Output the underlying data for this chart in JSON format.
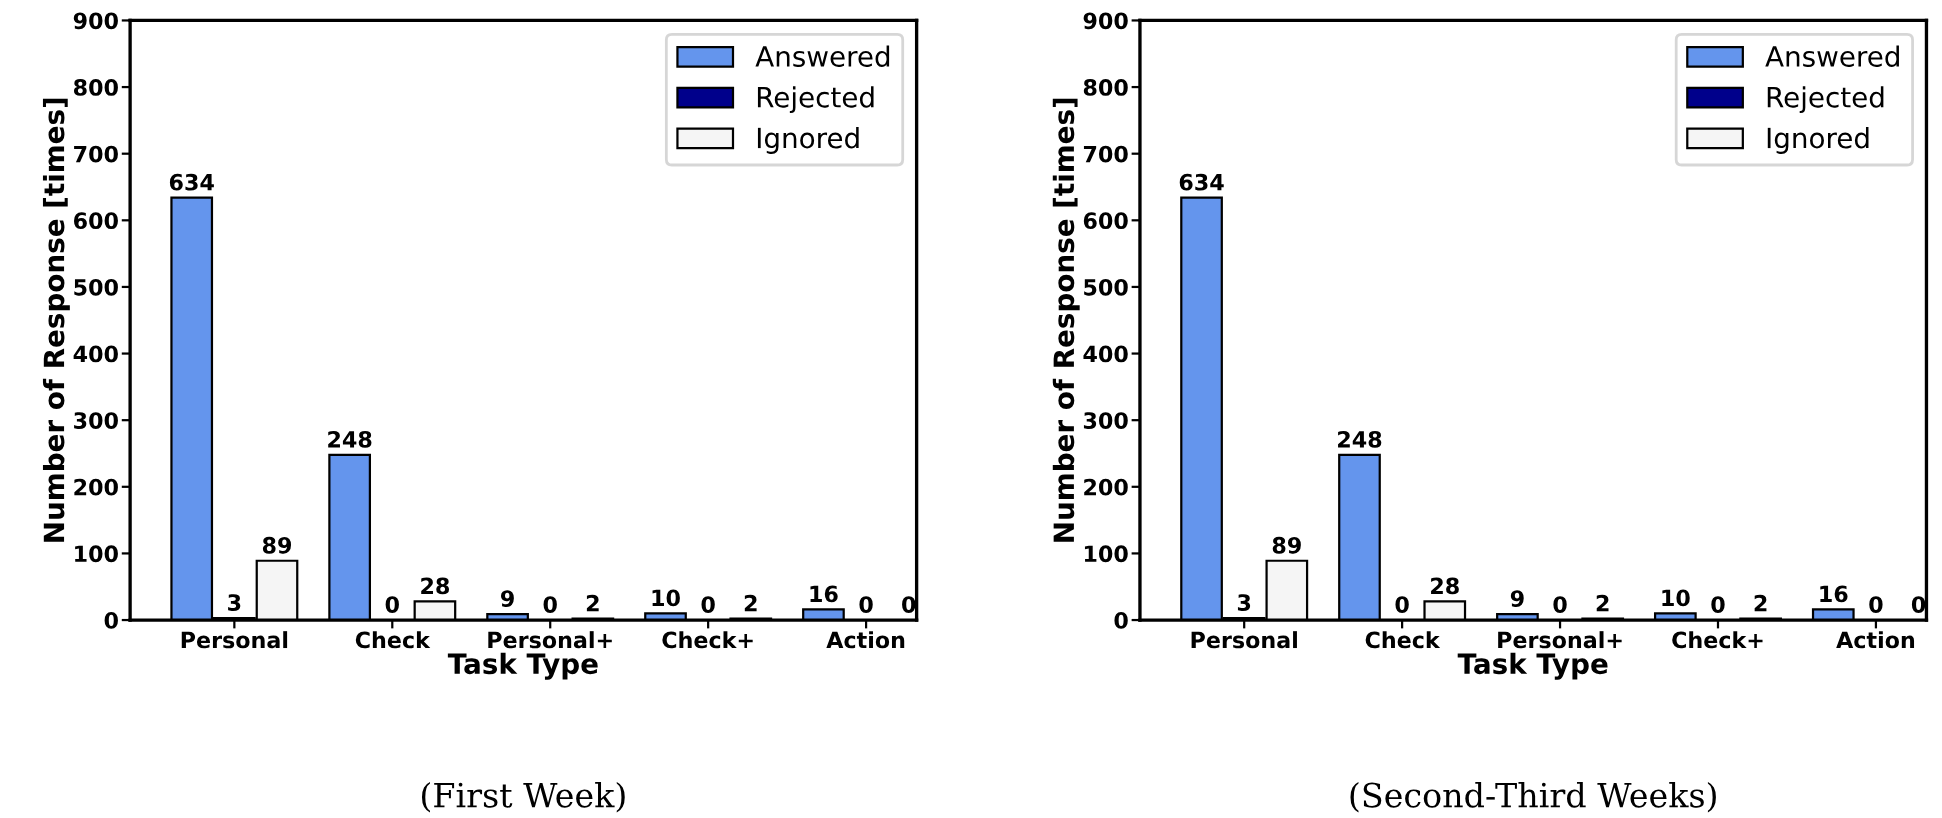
{
  "chart_data": [
    {
      "type": "bar",
      "xlabel": "Task Type",
      "ylabel": "Number of Response [times]",
      "categories": [
        "Personal",
        "Check",
        "Personal+",
        "Check+",
        "Action"
      ],
      "series": [
        {
          "name": "Answered",
          "color": "#6495ed",
          "values": [
            634,
            248,
            9,
            10,
            16
          ]
        },
        {
          "name": "Rejected",
          "color": "#00008b",
          "values": [
            3,
            0,
            0,
            0,
            0
          ]
        },
        {
          "name": "Ignored",
          "color": "#f5f5f5",
          "values": [
            89,
            28,
            2,
            2,
            0
          ]
        }
      ],
      "ylim": [
        0,
        900
      ],
      "yticks": [
        0,
        100,
        200,
        300,
        400,
        500,
        600,
        700,
        800,
        900
      ],
      "data_labels": true,
      "legend": "top right",
      "grid": false,
      "annotations": [
        "(First Week)"
      ]
    },
    {
      "type": "bar",
      "xlabel": "Task Type",
      "ylabel": "Number of Response [times]",
      "categories": [
        "Personal",
        "Check",
        "Personal+",
        "Check+",
        "Action"
      ],
      "series": [
        {
          "name": "Answered",
          "color": "#6495ed",
          "values": [
            634,
            248,
            9,
            10,
            16
          ]
        },
        {
          "name": "Rejected",
          "color": "#00008b",
          "values": [
            3,
            0,
            0,
            0,
            0
          ]
        },
        {
          "name": "Ignored",
          "color": "#f5f5f5",
          "values": [
            89,
            28,
            2,
            2,
            0
          ]
        }
      ],
      "ylim": [
        0,
        900
      ],
      "yticks": [
        0,
        100,
        200,
        300,
        400,
        500,
        600,
        700,
        800,
        900
      ],
      "data_labels": true,
      "legend": "top right",
      "grid": false,
      "annotations": [
        "(Second-Third Weeks)"
      ]
    }
  ]
}
